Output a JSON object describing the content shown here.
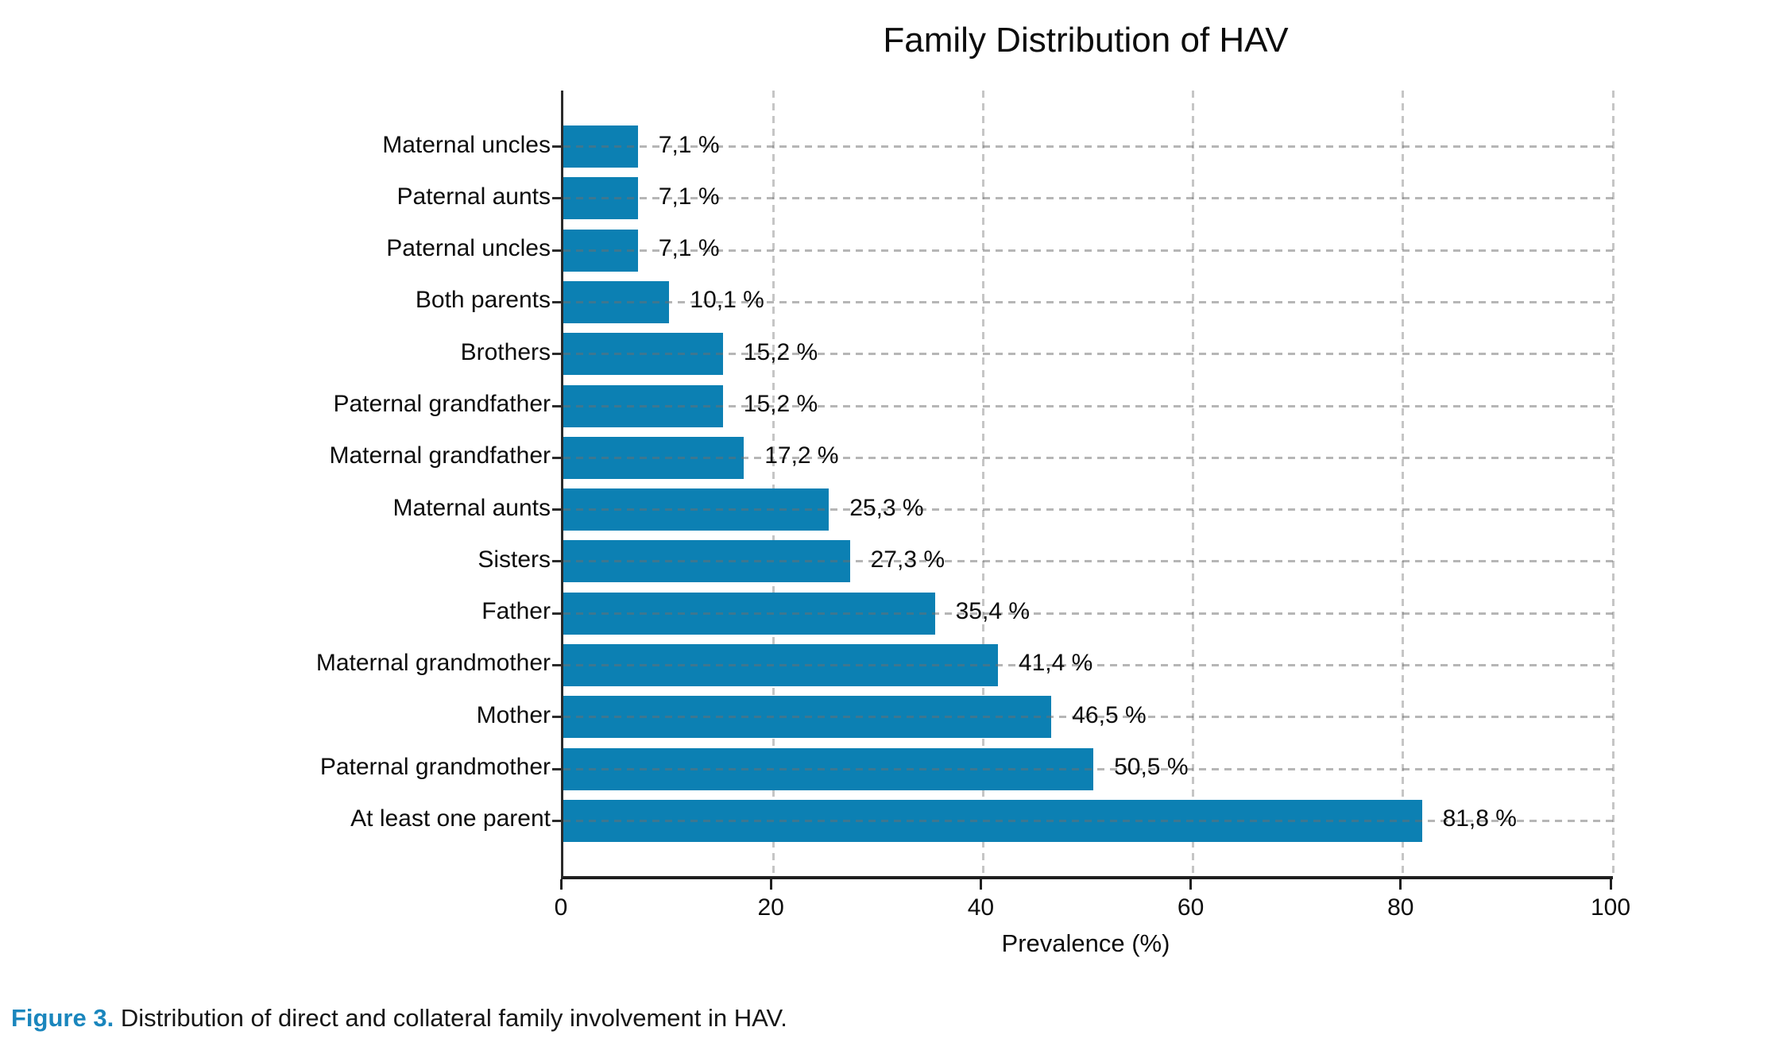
{
  "title": "Family Distribution of HAV",
  "chart_data": {
    "type": "bar",
    "orientation": "horizontal",
    "title": "Family Distribution of HAV",
    "xlabel": "Prevalence (%)",
    "xlim": [
      0,
      100
    ],
    "xticks": [
      0,
      20,
      40,
      60,
      80,
      100
    ],
    "grid": "dashed, x-grid behind bars, y-grid over bars",
    "bar_color": "#0c80b3",
    "categories": [
      "Maternal uncles",
      "Paternal aunts",
      "Paternal uncles",
      "Both parents",
      "Brothers",
      "Paternal grandfather",
      "Maternal grandfather",
      "Maternal aunts",
      "Sisters",
      "Father",
      "Maternal grandmother",
      "Mother",
      "Paternal grandmother",
      "At least one parent"
    ],
    "values": [
      7.1,
      7.1,
      7.1,
      10.1,
      15.2,
      15.2,
      17.2,
      25.3,
      27.3,
      35.4,
      41.4,
      46.5,
      50.5,
      81.8
    ],
    "value_labels": [
      "7,1 %",
      "7,1 %",
      "7,1 %",
      "10,1 %",
      "15,2 %",
      "15,2 %",
      "17,2 %",
      "25,3 %",
      "27,3 %",
      "35,4 %",
      "41,4 %",
      "46,5 %",
      "50,5 %",
      "81,8 %"
    ]
  },
  "caption": {
    "prefix": "Figure 3.",
    "text": " Distribution of direct and collateral family involvement in HAV."
  },
  "colors": {
    "bar": "#0c80b3",
    "caption_accent": "#1a86bd",
    "spine": "#2b2b2b",
    "gridline": "#c8c8c8"
  }
}
